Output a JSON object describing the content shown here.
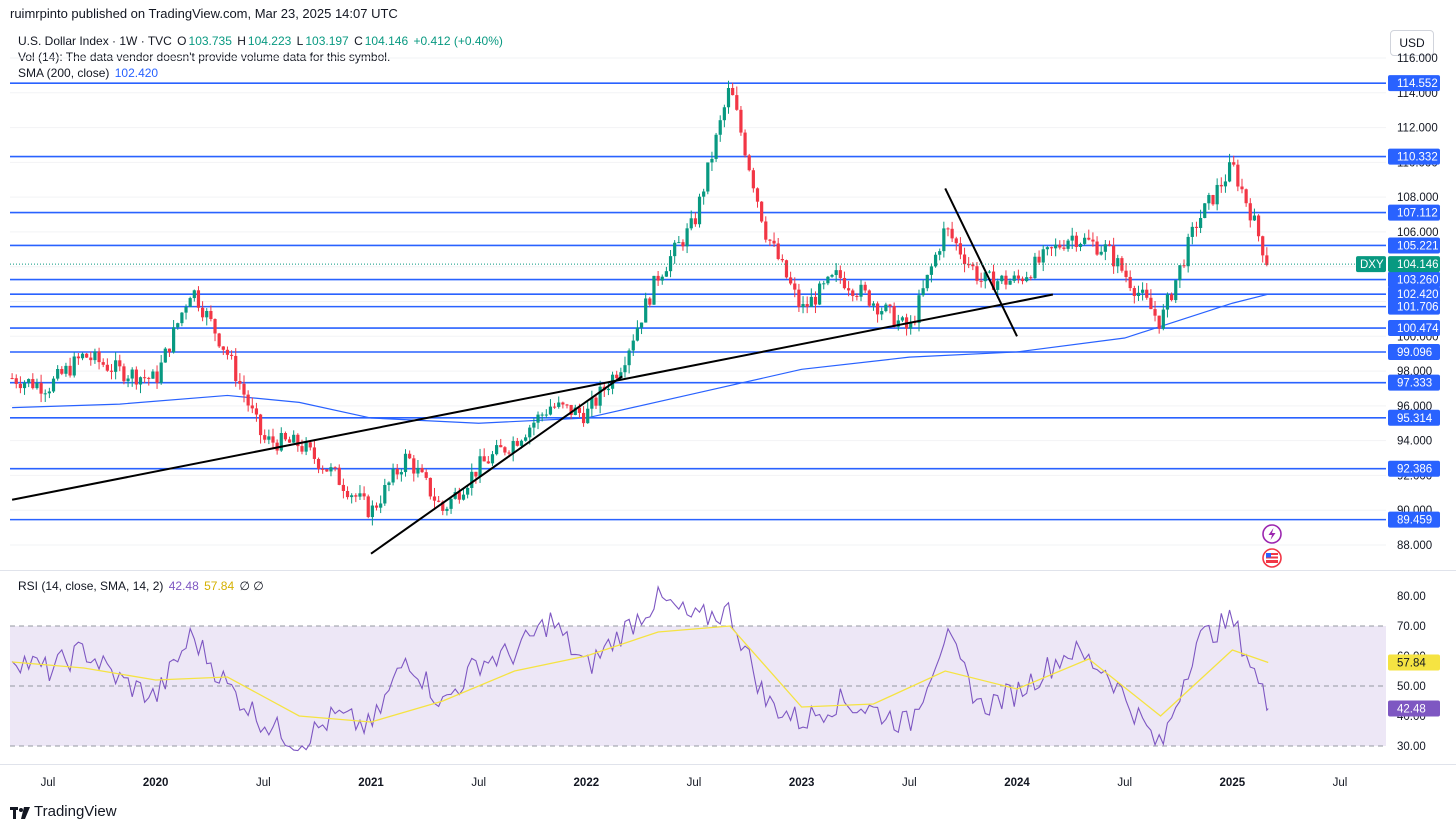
{
  "publisher": "ruimrpinto published on TradingView.com, Mar 23, 2025 14:07 UTC",
  "legend": {
    "symbol": "U.S. Dollar Index · 1W · TVC",
    "o_label": "O",
    "o_value": "103.735",
    "h_label": "H",
    "h_value": "104.223",
    "l_label": "L",
    "l_value": "103.197",
    "c_label": "C",
    "c_value": "104.146",
    "change": "+0.412 (+0.40%)",
    "vol_text": "Vol (14): The data vendor doesn't provide volume data for this symbol.",
    "sma_label": "SMA (200, close)",
    "sma_value": "102.420"
  },
  "currency_button": "USD",
  "rsi_legend": {
    "label": "RSI (14, close, SMA, 14, 2)",
    "rsi_value": "42.48",
    "sma_value": "57.84",
    "extra": "∅ ∅"
  },
  "logo_text": "TradingView",
  "colors": {
    "up": "#089981",
    "down": "#f23645",
    "level_line": "#2962ff",
    "sma_line": "#2962ff",
    "rsi_line": "#7e57c2",
    "rsi_sma": "#f5e342",
    "rsi_band": "#ede7f6"
  },
  "chart_data": [
    {
      "type": "candlestick",
      "title": "U.S. Dollar Index · 1W · TVC",
      "ylim": [
        87.0,
        116.2
      ],
      "price_ticks": [
        "88.000",
        "90.000",
        "92.000",
        "94.000",
        "96.000",
        "98.000",
        "100.000",
        "102.000",
        "104.000",
        "106.000",
        "108.000",
        "110.000",
        "112.000",
        "114.000",
        "116.000"
      ],
      "horizontal_levels": [
        114.552,
        110.332,
        107.112,
        105.221,
        103.26,
        102.42,
        101.706,
        100.474,
        99.096,
        97.333,
        95.314,
        92.386,
        89.459
      ],
      "horizontal_level_labels": [
        "114.552",
        "110.332",
        "107.112",
        "105.221",
        "103.260",
        "102.420",
        "101.706",
        "100.474",
        "99.096",
        "97.333",
        "95.314",
        "92.386",
        "89.459"
      ],
      "last_price": 104.146,
      "last_price_label": "104.146",
      "symbol_tag": "DXY",
      "sma_200": [
        {
          "x": "2019-05",
          "y": 95.9
        },
        {
          "x": "2019-11",
          "y": 96.1
        },
        {
          "x": "2020-05",
          "y": 96.6
        },
        {
          "x": "2020-09",
          "y": 96.2
        },
        {
          "x": "2021-01",
          "y": 95.3
        },
        {
          "x": "2021-07",
          "y": 95.0
        },
        {
          "x": "2022-01",
          "y": 95.3
        },
        {
          "x": "2022-07",
          "y": 96.7
        },
        {
          "x": "2023-01",
          "y": 98.1
        },
        {
          "x": "2023-07",
          "y": 98.8
        },
        {
          "x": "2024-01",
          "y": 99.1
        },
        {
          "x": "2024-07",
          "y": 99.9
        },
        {
          "x": "2025-01",
          "y": 101.9
        },
        {
          "x": "2025-03",
          "y": 102.42
        }
      ],
      "candles_close": [
        {
          "x": "2019-05",
          "y": 97.6
        },
        {
          "x": "2019-07",
          "y": 97.1
        },
        {
          "x": "2019-09",
          "y": 98.9
        },
        {
          "x": "2019-11",
          "y": 98.0
        },
        {
          "x": "2020-01",
          "y": 97.5
        },
        {
          "x": "2020-03",
          "y": 102.8
        },
        {
          "x": "2020-05",
          "y": 99.0
        },
        {
          "x": "2020-07",
          "y": 94.0
        },
        {
          "x": "2020-09",
          "y": 93.8
        },
        {
          "x": "2020-11",
          "y": 92.0
        },
        {
          "x": "2021-01",
          "y": 89.9
        },
        {
          "x": "2021-03",
          "y": 93.1
        },
        {
          "x": "2021-05",
          "y": 90.0
        },
        {
          "x": "2021-07",
          "y": 92.5
        },
        {
          "x": "2021-09",
          "y": 94.0
        },
        {
          "x": "2021-11",
          "y": 96.0
        },
        {
          "x": "2022-01",
          "y": 95.5
        },
        {
          "x": "2022-03",
          "y": 98.5
        },
        {
          "x": "2022-05",
          "y": 103.5
        },
        {
          "x": "2022-07",
          "y": 106.5
        },
        {
          "x": "2022-09",
          "y": 114.3
        },
        {
          "x": "2022-11",
          "y": 106.0
        },
        {
          "x": "2023-01",
          "y": 101.5
        },
        {
          "x": "2023-03",
          "y": 103.5
        },
        {
          "x": "2023-05",
          "y": 102.0
        },
        {
          "x": "2023-07",
          "y": 100.3
        },
        {
          "x": "2023-09",
          "y": 106.2
        },
        {
          "x": "2023-11",
          "y": 103.2
        },
        {
          "x": "2024-01",
          "y": 103.2
        },
        {
          "x": "2024-04",
          "y": 105.8
        },
        {
          "x": "2024-06",
          "y": 105.0
        },
        {
          "x": "2024-09",
          "y": 100.8
        },
        {
          "x": "2024-11",
          "y": 106.5
        },
        {
          "x": "2025-01",
          "y": 109.8
        },
        {
          "x": "2025-02",
          "y": 107.2
        },
        {
          "x": "2025-03",
          "y": 104.146
        }
      ],
      "trendlines": [
        {
          "from": {
            "x": "2019-05",
            "y": 90.6
          },
          "to": {
            "x": "2024-03",
            "y": 102.4
          }
        },
        {
          "from": {
            "x": "2021-01",
            "y": 87.5
          },
          "to": {
            "x": "2022-03",
            "y": 97.7
          }
        },
        {
          "from": {
            "x": "2023-09",
            "y": 108.5
          },
          "to": {
            "x": "2024-01",
            "y": 100.0
          }
        }
      ]
    },
    {
      "type": "line",
      "title": "RSI (14, close, SMA, 14, 2)",
      "ylim": [
        26,
        84
      ],
      "ticks": [
        "30.00",
        "40.00",
        "50.00",
        "60.00",
        "70.00",
        "80.00"
      ],
      "band": [
        30,
        70
      ],
      "midline": 50,
      "series": [
        {
          "name": "RSI",
          "last": 42.48,
          "last_label": "42.48",
          "values": [
            {
              "x": "2019-05",
              "y": 60
            },
            {
              "x": "2019-07",
              "y": 55
            },
            {
              "x": "2019-09",
              "y": 62
            },
            {
              "x": "2019-11",
              "y": 52
            },
            {
              "x": "2020-01",
              "y": 46
            },
            {
              "x": "2020-03",
              "y": 67
            },
            {
              "x": "2020-05",
              "y": 50
            },
            {
              "x": "2020-07",
              "y": 38
            },
            {
              "x": "2020-09",
              "y": 31
            },
            {
              "x": "2020-11",
              "y": 40
            },
            {
              "x": "2021-01",
              "y": 36
            },
            {
              "x": "2021-03",
              "y": 60
            },
            {
              "x": "2021-05",
              "y": 44
            },
            {
              "x": "2021-07",
              "y": 58
            },
            {
              "x": "2021-09",
              "y": 61
            },
            {
              "x": "2021-11",
              "y": 72
            },
            {
              "x": "2022-01",
              "y": 56
            },
            {
              "x": "2022-03",
              "y": 68
            },
            {
              "x": "2022-05",
              "y": 79
            },
            {
              "x": "2022-07",
              "y": 72
            },
            {
              "x": "2022-09",
              "y": 75
            },
            {
              "x": "2022-11",
              "y": 45
            },
            {
              "x": "2023-01",
              "y": 38
            },
            {
              "x": "2023-03",
              "y": 45
            },
            {
              "x": "2023-05",
              "y": 42
            },
            {
              "x": "2023-07",
              "y": 37
            },
            {
              "x": "2023-09",
              "y": 67
            },
            {
              "x": "2023-11",
              "y": 43
            },
            {
              "x": "2024-01",
              "y": 48
            },
            {
              "x": "2024-04",
              "y": 62
            },
            {
              "x": "2024-06",
              "y": 55
            },
            {
              "x": "2024-09",
              "y": 29
            },
            {
              "x": "2024-11",
              "y": 65
            },
            {
              "x": "2025-01",
              "y": 72
            },
            {
              "x": "2025-02",
              "y": 58
            },
            {
              "x": "2025-03",
              "y": 42.48
            }
          ]
        },
        {
          "name": "RSI-based MA",
          "last": 57.84,
          "last_label": "57.84",
          "values": [
            {
              "x": "2019-05",
              "y": 58
            },
            {
              "x": "2019-09",
              "y": 56
            },
            {
              "x": "2020-01",
              "y": 52
            },
            {
              "x": "2020-05",
              "y": 53
            },
            {
              "x": "2020-09",
              "y": 40
            },
            {
              "x": "2021-01",
              "y": 38
            },
            {
              "x": "2021-05",
              "y": 45
            },
            {
              "x": "2021-09",
              "y": 55
            },
            {
              "x": "2022-01",
              "y": 60
            },
            {
              "x": "2022-05",
              "y": 68
            },
            {
              "x": "2022-09",
              "y": 70
            },
            {
              "x": "2023-01",
              "y": 43
            },
            {
              "x": "2023-05",
              "y": 44
            },
            {
              "x": "2023-09",
              "y": 55
            },
            {
              "x": "2024-01",
              "y": 49
            },
            {
              "x": "2024-05",
              "y": 59
            },
            {
              "x": "2024-09",
              "y": 40
            },
            {
              "x": "2025-01",
              "y": 62
            },
            {
              "x": "2025-03",
              "y": 57.84
            }
          ]
        }
      ]
    }
  ],
  "x_axis": [
    {
      "label": "Jul",
      "x": "2019-07",
      "year": false
    },
    {
      "label": "2020",
      "x": "2020-01",
      "year": true
    },
    {
      "label": "Jul",
      "x": "2020-07",
      "year": false
    },
    {
      "label": "2021",
      "x": "2021-01",
      "year": true
    },
    {
      "label": "Jul",
      "x": "2021-07",
      "year": false
    },
    {
      "label": "2022",
      "x": "2022-01",
      "year": true
    },
    {
      "label": "Jul",
      "x": "2022-07",
      "year": false
    },
    {
      "label": "2023",
      "x": "2023-01",
      "year": true
    },
    {
      "label": "Jul",
      "x": "2023-07",
      "year": false
    },
    {
      "label": "2024",
      "x": "2024-01",
      "year": true
    },
    {
      "label": "Jul",
      "x": "2024-07",
      "year": false
    },
    {
      "label": "2025",
      "x": "2025-01",
      "year": true
    },
    {
      "label": "Jul",
      "x": "2025-07",
      "year": false
    }
  ]
}
